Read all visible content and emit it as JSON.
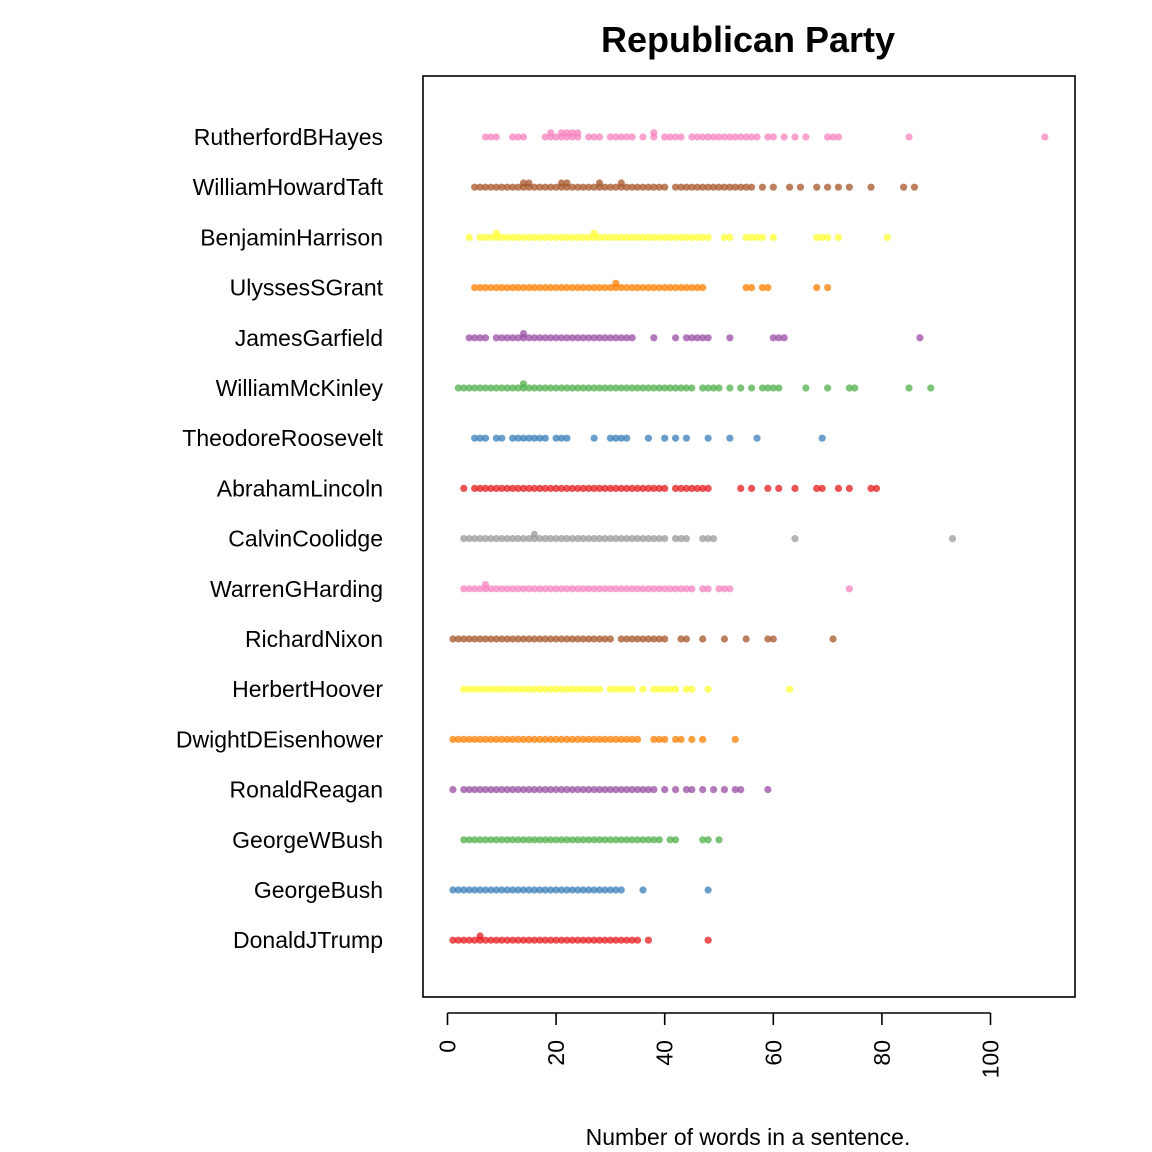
{
  "chart_data": {
    "type": "beeswarm",
    "title": "Republican Party",
    "xlabel": "Number of words in a sentence.",
    "ylabel": "",
    "xlim": [
      -4,
      115
    ],
    "x_ticks": [
      0,
      20,
      40,
      60,
      80,
      100
    ],
    "x_tick_labels": [
      "0",
      "20",
      "40",
      "60",
      "80",
      "100"
    ],
    "grid": false,
    "series": [
      {
        "name": "RutherfordBHayes",
        "color": "#F781BF",
        "x": [
          7,
          8,
          9,
          12,
          13,
          14,
          18,
          19,
          19,
          20,
          21,
          21,
          22,
          22,
          23,
          23,
          24,
          24,
          26,
          27,
          28,
          30,
          31,
          32,
          33,
          34,
          36,
          38,
          38,
          40,
          41,
          42,
          43,
          45,
          46,
          47,
          48,
          49,
          50,
          51,
          52,
          53,
          54,
          55,
          56,
          57,
          59,
          60,
          62,
          64,
          66,
          70,
          71,
          72,
          85,
          110
        ]
      },
      {
        "name": "WilliamHowardTaft",
        "color": "#A65628",
        "x": [
          5,
          6,
          7,
          8,
          9,
          10,
          11,
          12,
          13,
          14,
          14,
          15,
          15,
          16,
          17,
          18,
          19,
          20,
          21,
          21,
          22,
          22,
          23,
          24,
          25,
          26,
          27,
          28,
          28,
          29,
          30,
          31,
          32,
          32,
          33,
          34,
          35,
          36,
          37,
          38,
          39,
          40,
          42,
          43,
          44,
          45,
          46,
          47,
          48,
          49,
          50,
          51,
          52,
          53,
          54,
          55,
          56,
          58,
          60,
          63,
          65,
          68,
          70,
          72,
          74,
          78,
          84,
          86
        ]
      },
      {
        "name": "BenjaminHarrison",
        "color": "#FFFF33",
        "x": [
          4,
          6,
          7,
          8,
          9,
          9,
          10,
          11,
          12,
          13,
          14,
          15,
          16,
          17,
          18,
          19,
          20,
          21,
          22,
          23,
          24,
          25,
          26,
          27,
          27,
          28,
          29,
          30,
          31,
          32,
          33,
          34,
          35,
          36,
          37,
          38,
          39,
          40,
          41,
          42,
          43,
          44,
          45,
          46,
          47,
          48,
          51,
          52,
          55,
          56,
          57,
          58,
          60,
          68,
          69,
          70,
          72,
          81
        ]
      },
      {
        "name": "UlyssesSGrant",
        "color": "#FF7F00",
        "x": [
          5,
          6,
          7,
          8,
          9,
          10,
          11,
          12,
          13,
          14,
          15,
          16,
          17,
          18,
          19,
          20,
          21,
          22,
          23,
          24,
          25,
          26,
          27,
          28,
          29,
          30,
          31,
          31,
          32,
          33,
          34,
          35,
          36,
          37,
          38,
          39,
          40,
          41,
          42,
          43,
          44,
          45,
          46,
          47,
          55,
          56,
          58,
          59,
          68,
          70
        ]
      },
      {
        "name": "JamesGarfield",
        "color": "#984EA3",
        "x": [
          4,
          5,
          6,
          7,
          9,
          10,
          11,
          12,
          13,
          14,
          14,
          15,
          16,
          17,
          18,
          19,
          20,
          21,
          22,
          23,
          24,
          25,
          26,
          27,
          28,
          29,
          30,
          31,
          32,
          33,
          34,
          38,
          42,
          44,
          45,
          46,
          47,
          48,
          52,
          60,
          61,
          62,
          87
        ]
      },
      {
        "name": "WilliamMcKinley",
        "color": "#4DAF4A",
        "x": [
          2,
          3,
          4,
          5,
          6,
          7,
          8,
          9,
          10,
          11,
          12,
          13,
          14,
          14,
          15,
          16,
          17,
          18,
          19,
          20,
          21,
          22,
          23,
          24,
          25,
          26,
          27,
          28,
          29,
          30,
          31,
          32,
          33,
          34,
          35,
          36,
          37,
          38,
          39,
          40,
          41,
          42,
          43,
          44,
          45,
          47,
          48,
          49,
          50,
          52,
          54,
          56,
          58,
          59,
          60,
          61,
          66,
          70,
          74,
          75,
          85,
          89
        ]
      },
      {
        "name": "TheodoreRoosevelt",
        "color": "#377EB8",
        "x": [
          5,
          6,
          7,
          9,
          10,
          12,
          13,
          14,
          15,
          16,
          17,
          18,
          20,
          21,
          22,
          27,
          30,
          31,
          32,
          33,
          37,
          40,
          42,
          44,
          48,
          52,
          57,
          69
        ]
      },
      {
        "name": "AbrahamLincoln",
        "color": "#E41A1C",
        "x": [
          3,
          5,
          6,
          7,
          8,
          9,
          10,
          11,
          12,
          13,
          14,
          15,
          16,
          17,
          18,
          19,
          20,
          21,
          22,
          23,
          24,
          25,
          26,
          27,
          28,
          29,
          30,
          31,
          32,
          33,
          34,
          35,
          36,
          37,
          38,
          39,
          40,
          42,
          43,
          44,
          45,
          46,
          47,
          48,
          54,
          56,
          59,
          61,
          64,
          68,
          69,
          72,
          74,
          78,
          79
        ]
      },
      {
        "name": "CalvinCoolidge",
        "color": "#999999",
        "x": [
          3,
          4,
          5,
          6,
          7,
          8,
          9,
          10,
          11,
          12,
          13,
          14,
          15,
          16,
          16,
          17,
          18,
          19,
          20,
          21,
          22,
          23,
          24,
          25,
          26,
          27,
          28,
          29,
          30,
          31,
          32,
          33,
          34,
          35,
          36,
          37,
          38,
          39,
          40,
          42,
          43,
          44,
          47,
          48,
          49,
          64,
          93
        ]
      },
      {
        "name": "WarrenGHarding",
        "color": "#F781BF",
        "x": [
          3,
          4,
          5,
          6,
          7,
          7,
          8,
          9,
          10,
          11,
          12,
          13,
          14,
          15,
          16,
          17,
          18,
          19,
          20,
          21,
          22,
          23,
          24,
          25,
          26,
          27,
          28,
          29,
          30,
          31,
          32,
          33,
          34,
          35,
          36,
          37,
          38,
          39,
          40,
          41,
          42,
          43,
          44,
          45,
          47,
          48,
          50,
          51,
          52,
          74
        ]
      },
      {
        "name": "RichardNixon",
        "color": "#A65628",
        "x": [
          1,
          2,
          3,
          4,
          5,
          6,
          7,
          8,
          9,
          10,
          11,
          12,
          13,
          14,
          15,
          16,
          17,
          18,
          19,
          20,
          21,
          22,
          23,
          24,
          25,
          26,
          27,
          28,
          29,
          30,
          32,
          33,
          34,
          35,
          36,
          37,
          38,
          39,
          40,
          43,
          44,
          47,
          51,
          55,
          59,
          60,
          71
        ]
      },
      {
        "name": "HerbertHoover",
        "color": "#FFFF33",
        "x": [
          3,
          4,
          5,
          6,
          7,
          8,
          9,
          10,
          11,
          12,
          13,
          14,
          15,
          16,
          17,
          18,
          19,
          20,
          21,
          22,
          23,
          24,
          25,
          26,
          27,
          28,
          30,
          31,
          32,
          33,
          34,
          36,
          38,
          39,
          40,
          41,
          42,
          44,
          45,
          48,
          63
        ]
      },
      {
        "name": "DwightDEisenhower",
        "color": "#FF7F00",
        "x": [
          1,
          2,
          3,
          4,
          5,
          6,
          7,
          8,
          9,
          10,
          11,
          12,
          13,
          14,
          15,
          16,
          17,
          18,
          19,
          20,
          21,
          22,
          23,
          24,
          25,
          26,
          27,
          28,
          29,
          30,
          31,
          32,
          33,
          34,
          35,
          38,
          39,
          40,
          42,
          43,
          45,
          47,
          53
        ]
      },
      {
        "name": "RonaldReagan",
        "color": "#984EA3",
        "x": [
          1,
          3,
          4,
          5,
          6,
          7,
          8,
          9,
          10,
          11,
          12,
          13,
          14,
          15,
          16,
          17,
          18,
          19,
          20,
          21,
          22,
          23,
          24,
          25,
          26,
          27,
          28,
          29,
          30,
          31,
          32,
          33,
          34,
          35,
          36,
          37,
          38,
          40,
          42,
          44,
          45,
          47,
          49,
          51,
          53,
          54,
          59
        ]
      },
      {
        "name": "GeorgeWBush",
        "color": "#4DAF4A",
        "x": [
          3,
          4,
          5,
          6,
          7,
          8,
          9,
          10,
          11,
          12,
          13,
          14,
          15,
          16,
          17,
          18,
          19,
          20,
          21,
          22,
          23,
          24,
          25,
          26,
          27,
          28,
          29,
          30,
          31,
          32,
          33,
          34,
          35,
          36,
          37,
          38,
          39,
          41,
          42,
          47,
          48,
          50
        ]
      },
      {
        "name": "GeorgeBush",
        "color": "#377EB8",
        "x": [
          1,
          2,
          3,
          4,
          5,
          6,
          7,
          8,
          9,
          10,
          11,
          12,
          13,
          14,
          15,
          16,
          17,
          18,
          19,
          20,
          21,
          22,
          23,
          24,
          25,
          26,
          27,
          28,
          29,
          30,
          31,
          32,
          36,
          48
        ]
      },
      {
        "name": "DonaldJTrump",
        "color": "#E41A1C",
        "x": [
          1,
          2,
          3,
          4,
          5,
          6,
          6,
          7,
          8,
          9,
          10,
          11,
          12,
          13,
          14,
          15,
          16,
          17,
          18,
          19,
          20,
          21,
          22,
          23,
          24,
          25,
          26,
          27,
          28,
          29,
          30,
          31,
          32,
          33,
          34,
          35,
          37,
          48
        ]
      }
    ]
  }
}
